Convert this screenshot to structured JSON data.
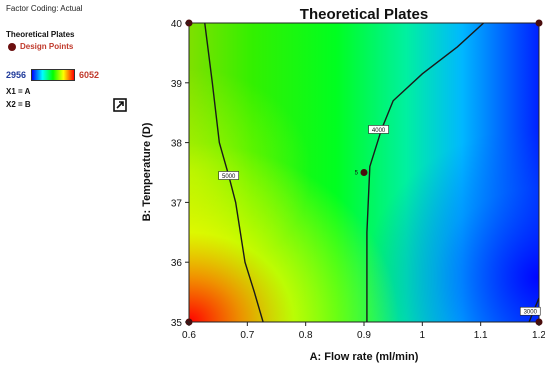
{
  "legend": {
    "factor_coding": "Factor Coding: Actual",
    "response_name": "Theoretical Plates",
    "design_points_label": "Design Points",
    "range_min": "2956",
    "range_max": "6052",
    "x1": "X1 = A",
    "x2": "X2 = B",
    "icon": "expand-icon"
  },
  "chart_data": {
    "type": "heatmap",
    "title": "Theoretical Plates",
    "xlabel": "A: Flow rate (ml/min)",
    "ylabel": "B: Temperature (D)",
    "xlim": [
      0.6,
      1.2
    ],
    "ylim": [
      35,
      40
    ],
    "x_ticks": [
      "0.6",
      "0.7",
      "0.8",
      "0.9",
      "1",
      "1.1",
      "1.2"
    ],
    "y_ticks": [
      "35",
      "36",
      "37",
      "38",
      "39",
      "40"
    ],
    "colorscale": [
      "#0000ff",
      "#00ffff",
      "#00ff00",
      "#ffff00",
      "#ff0000"
    ],
    "value_range": [
      2956,
      6052
    ],
    "contours": [
      {
        "label": "5000",
        "points": [
          [
            0.627,
            40
          ],
          [
            0.64,
            39
          ],
          [
            0.652,
            38
          ],
          [
            0.668,
            37.45
          ],
          [
            0.68,
            37
          ],
          [
            0.696,
            36
          ],
          [
            0.712,
            35.5
          ],
          [
            0.727,
            35
          ]
        ],
        "label_at": [
          0.668,
          37.45
        ]
      },
      {
        "label": "4000",
        "points": [
          [
            1.105,
            40
          ],
          [
            1.06,
            39.6
          ],
          [
            1.0,
            39.15
          ],
          [
            0.95,
            38.7
          ],
          [
            0.93,
            38.22
          ],
          [
            0.91,
            37.6
          ],
          [
            0.905,
            36.5
          ],
          [
            0.905,
            35
          ]
        ],
        "label_at": [
          0.925,
          38.22
        ]
      },
      {
        "label": "3000",
        "points": [
          [
            1.2,
            35.4
          ],
          [
            1.183,
            35
          ]
        ],
        "label_at": [
          1.185,
          35.18
        ]
      }
    ],
    "design_points": [
      {
        "x": 0.6,
        "y": 40
      },
      {
        "x": 1.2,
        "y": 40
      },
      {
        "x": 0.6,
        "y": 35
      },
      {
        "x": 1.2,
        "y": 35
      },
      {
        "x": 0.9,
        "y": 37.5,
        "label": "5"
      }
    ],
    "grid": false
  }
}
